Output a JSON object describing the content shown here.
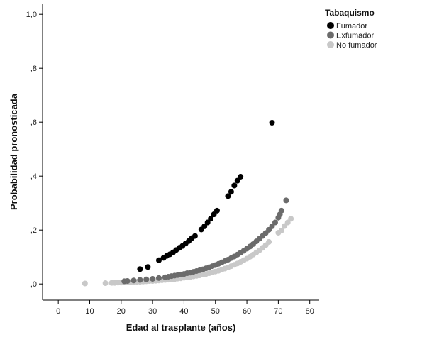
{
  "chart_data": {
    "type": "scatter",
    "xlabel": "Edad al trasplante (años)",
    "ylabel": "Probabilidad pronosticada",
    "xlim": [
      -5,
      83
    ],
    "ylim": [
      -0.06,
      1.04
    ],
    "x_ticks": [
      0,
      10,
      20,
      30,
      40,
      50,
      60,
      70,
      80
    ],
    "x_tick_labels": [
      "0",
      "10",
      "20",
      "30",
      "40",
      "50",
      "60",
      "70",
      "80"
    ],
    "y_ticks": [
      0.0,
      0.2,
      0.4,
      0.6,
      0.8,
      1.0
    ],
    "y_tick_labels": [
      ",0",
      ",2",
      ",4",
      ",6",
      ",8",
      "1,0"
    ],
    "grid": false,
    "legend": {
      "title": "Tabaquismo",
      "position": "top-right"
    },
    "series": [
      {
        "name": "Fumador",
        "color": "#000000",
        "points": [
          [
            26,
            0.055
          ],
          [
            28.5,
            0.063
          ],
          [
            32,
            0.088
          ],
          [
            33.5,
            0.097
          ],
          [
            34.5,
            0.104
          ],
          [
            35.5,
            0.11
          ],
          [
            36.5,
            0.117
          ],
          [
            37.5,
            0.126
          ],
          [
            38.5,
            0.134
          ],
          [
            39.5,
            0.141
          ],
          [
            40.5,
            0.15
          ],
          [
            41.5,
            0.159
          ],
          [
            42.5,
            0.17
          ],
          [
            43.5,
            0.178
          ],
          [
            45.5,
            0.202
          ],
          [
            46.5,
            0.214
          ],
          [
            47.5,
            0.228
          ],
          [
            48.5,
            0.242
          ],
          [
            49.5,
            0.258
          ],
          [
            50.5,
            0.272
          ],
          [
            54,
            0.326
          ],
          [
            55,
            0.342
          ],
          [
            56,
            0.365
          ],
          [
            57,
            0.383
          ],
          [
            58,
            0.398
          ],
          [
            68,
            0.598
          ]
        ]
      },
      {
        "name": "Exfumador",
        "color": "#6b6b6b",
        "points": [
          [
            21,
            0.01
          ],
          [
            22,
            0.011
          ],
          [
            24,
            0.013
          ],
          [
            26,
            0.015
          ],
          [
            28,
            0.017
          ],
          [
            30,
            0.019
          ],
          [
            32,
            0.022
          ],
          [
            34,
            0.025
          ],
          [
            35,
            0.027
          ],
          [
            36,
            0.029
          ],
          [
            37,
            0.031
          ],
          [
            38,
            0.033
          ],
          [
            39,
            0.035
          ],
          [
            40,
            0.037
          ],
          [
            41,
            0.04
          ],
          [
            42,
            0.042
          ],
          [
            43,
            0.045
          ],
          [
            44,
            0.048
          ],
          [
            45,
            0.051
          ],
          [
            46,
            0.054
          ],
          [
            47,
            0.058
          ],
          [
            48,
            0.062
          ],
          [
            49,
            0.066
          ],
          [
            50,
            0.07
          ],
          [
            51,
            0.075
          ],
          [
            52,
            0.08
          ],
          [
            53,
            0.085
          ],
          [
            54,
            0.09
          ],
          [
            55,
            0.096
          ],
          [
            56,
            0.102
          ],
          [
            57,
            0.109
          ],
          [
            58,
            0.116
          ],
          [
            59,
            0.123
          ],
          [
            60,
            0.131
          ],
          [
            61,
            0.139
          ],
          [
            62,
            0.148
          ],
          [
            63,
            0.158
          ],
          [
            64,
            0.168
          ],
          [
            65,
            0.178
          ],
          [
            66,
            0.189
          ],
          [
            67,
            0.201
          ],
          [
            68,
            0.214
          ],
          [
            69,
            0.228
          ],
          [
            70,
            0.246
          ],
          [
            70.5,
            0.258
          ],
          [
            71,
            0.272
          ],
          [
            72.5,
            0.31
          ]
        ]
      },
      {
        "name": "No fumador",
        "color": "#c8c8c8",
        "points": [
          [
            8.5,
            0.002
          ],
          [
            15,
            0.003
          ],
          [
            17,
            0.004
          ],
          [
            18,
            0.004
          ],
          [
            19,
            0.005
          ],
          [
            20,
            0.005
          ],
          [
            21,
            0.006
          ],
          [
            22,
            0.006
          ],
          [
            23,
            0.007
          ],
          [
            24,
            0.007
          ],
          [
            25,
            0.008
          ],
          [
            26,
            0.008
          ],
          [
            27,
            0.009
          ],
          [
            28,
            0.01
          ],
          [
            29,
            0.011
          ],
          [
            30,
            0.011
          ],
          [
            31,
            0.012
          ],
          [
            32,
            0.013
          ],
          [
            33,
            0.014
          ],
          [
            34,
            0.015
          ],
          [
            35,
            0.016
          ],
          [
            36,
            0.017
          ],
          [
            37,
            0.018
          ],
          [
            38,
            0.02
          ],
          [
            39,
            0.021
          ],
          [
            40,
            0.023
          ],
          [
            41,
            0.024
          ],
          [
            42,
            0.026
          ],
          [
            43,
            0.028
          ],
          [
            44,
            0.03
          ],
          [
            45,
            0.032
          ],
          [
            46,
            0.035
          ],
          [
            47,
            0.037
          ],
          [
            48,
            0.04
          ],
          [
            49,
            0.043
          ],
          [
            50,
            0.046
          ],
          [
            51,
            0.049
          ],
          [
            52,
            0.053
          ],
          [
            53,
            0.057
          ],
          [
            54,
            0.061
          ],
          [
            55,
            0.066
          ],
          [
            56,
            0.071
          ],
          [
            57,
            0.076
          ],
          [
            58,
            0.082
          ],
          [
            59,
            0.088
          ],
          [
            60,
            0.094
          ],
          [
            61,
            0.101
          ],
          [
            62,
            0.109
          ],
          [
            63,
            0.117
          ],
          [
            64,
            0.125
          ],
          [
            65,
            0.134
          ],
          [
            66,
            0.144
          ],
          [
            67,
            0.156
          ],
          [
            70,
            0.19
          ],
          [
            71,
            0.198
          ],
          [
            72,
            0.215
          ],
          [
            73,
            0.228
          ],
          [
            74,
            0.242
          ]
        ]
      }
    ]
  }
}
